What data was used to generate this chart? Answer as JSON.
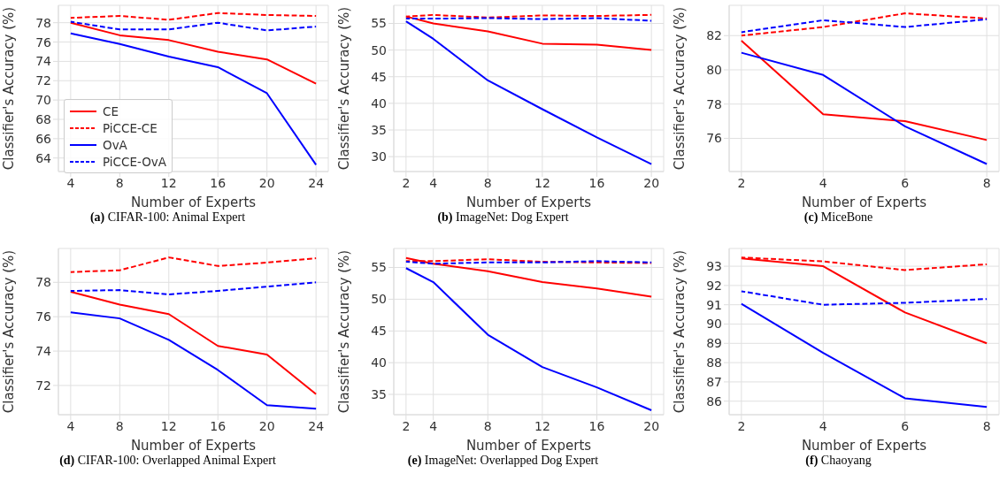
{
  "chart_data": [
    {
      "type": "line",
      "title": "(a) CIFAR-100: Animal Expert",
      "xlabel": "Number of Experts",
      "ylabel": "Classifier's Accuracy (%)",
      "x": [
        4,
        8,
        12,
        16,
        20,
        24
      ],
      "xlim": [
        3,
        25
      ],
      "xticks": [
        4,
        8,
        12,
        16,
        20,
        24
      ],
      "ylim": [
        62.6,
        79.8
      ],
      "yticks": [
        64,
        66,
        68,
        70,
        72,
        74,
        76,
        78
      ],
      "grid": true,
      "legend": "bottom left",
      "marker": "none",
      "series": [
        {
          "name": "CE",
          "color": "#ff0000",
          "line_style": "solid",
          "values": [
            78.0,
            76.7,
            76.2,
            75.0,
            74.2,
            71.7
          ]
        },
        {
          "name": "PiCCE-CE",
          "color": "#ff0000",
          "line_style": "dashed",
          "values": [
            78.5,
            78.7,
            78.3,
            79.0,
            78.8,
            78.7
          ]
        },
        {
          "name": "OvA",
          "color": "#0000ff",
          "line_style": "solid",
          "values": [
            76.9,
            75.8,
            74.5,
            73.4,
            70.7,
            63.3
          ]
        },
        {
          "name": "PiCCE-OvA",
          "color": "#0000ff",
          "line_style": "dashed",
          "values": [
            78.1,
            77.3,
            77.3,
            78.0,
            77.2,
            77.6
          ]
        }
      ]
    },
    {
      "type": "line",
      "title": "(b) ImageNet: Dog Expert",
      "xlabel": "Number of Experts",
      "ylabel": "Classifier's Accuracy (%)",
      "x": [
        2,
        4,
        8,
        12,
        16,
        20
      ],
      "xlim": [
        1.1,
        20.9
      ],
      "xticks": [
        2,
        4,
        8,
        12,
        16,
        20
      ],
      "ylim": [
        27.2,
        58.4
      ],
      "yticks": [
        30,
        35,
        40,
        45,
        50,
        55
      ],
      "grid": true,
      "legend": false,
      "marker": "none",
      "series": [
        {
          "color": "#ff0000",
          "line_style": "solid",
          "values": [
            56.3,
            55.0,
            53.5,
            51.2,
            51.0,
            50.0
          ]
        },
        {
          "color": "#ff0000",
          "line_style": "dashed",
          "values": [
            56.3,
            56.6,
            56.1,
            56.5,
            56.4,
            56.6
          ]
        },
        {
          "color": "#0000ff",
          "line_style": "solid",
          "values": [
            55.4,
            52.1,
            44.3,
            38.9,
            33.6,
            28.6
          ]
        },
        {
          "color": "#0000ff",
          "line_style": "dashed",
          "values": [
            55.9,
            55.9,
            56.0,
            55.8,
            56.0,
            55.5
          ]
        }
      ]
    },
    {
      "type": "line",
      "title": "(c) MiceBone",
      "xlabel": "Number of Experts",
      "ylabel": "Classifier's Accuracy (%)",
      "x": [
        2,
        4,
        6,
        8
      ],
      "xlim": [
        1.7,
        8.3
      ],
      "xticks": [
        2,
        4,
        6,
        8
      ],
      "ylim": [
        74.06,
        83.77
      ],
      "yticks": [
        76,
        78,
        80,
        82
      ],
      "grid": true,
      "legend": false,
      "marker": "none",
      "series": [
        {
          "color": "#ff0000",
          "line_style": "solid",
          "values": [
            81.7,
            77.4,
            77.0,
            75.9
          ]
        },
        {
          "color": "#ff0000",
          "line_style": "dashed",
          "values": [
            82.0,
            82.5,
            83.3,
            83.0
          ]
        },
        {
          "color": "#0000ff",
          "line_style": "solid",
          "values": [
            81.0,
            79.7,
            76.7,
            74.5
          ]
        },
        {
          "color": "#0000ff",
          "line_style": "dashed",
          "values": [
            82.2,
            82.9,
            82.5,
            82.95
          ]
        }
      ]
    },
    {
      "type": "line",
      "title": "(d) CIFAR-100: Overlapped Animal Expert",
      "xlabel": "Number of Experts",
      "ylabel": "Classifier's Accuracy (%)",
      "x": [
        4,
        8,
        12,
        16,
        20,
        24
      ],
      "xlim": [
        3,
        25
      ],
      "xticks": [
        4,
        8,
        12,
        16,
        20,
        24
      ],
      "ylim": [
        70.3,
        79.97
      ],
      "yticks": [
        72,
        74,
        76,
        78
      ],
      "grid": true,
      "legend": false,
      "marker": "none",
      "series": [
        {
          "color": "#ff0000",
          "line_style": "solid",
          "values": [
            77.45,
            76.7,
            76.15,
            74.3,
            73.8,
            71.5
          ]
        },
        {
          "color": "#ff0000",
          "line_style": "dashed",
          "values": [
            78.6,
            78.7,
            79.45,
            78.95,
            79.15,
            79.4
          ]
        },
        {
          "color": "#0000ff",
          "line_style": "solid",
          "values": [
            76.25,
            75.9,
            74.65,
            72.9,
            70.85,
            70.65
          ]
        },
        {
          "color": "#0000ff",
          "line_style": "dashed",
          "values": [
            77.5,
            77.55,
            77.3,
            77.5,
            77.75,
            78.0
          ]
        }
      ]
    },
    {
      "type": "line",
      "title": "(e) ImageNet: Overlapped Dog Expert",
      "xlabel": "Number of Experts",
      "ylabel": "Classifier's Accuracy (%)",
      "x": [
        2,
        4,
        8,
        12,
        16,
        20
      ],
      "xlim": [
        1.1,
        20.9
      ],
      "xticks": [
        2,
        4,
        8,
        12,
        16,
        20
      ],
      "ylim": [
        31.8,
        58.0
      ],
      "yticks": [
        35,
        40,
        45,
        50,
        55
      ],
      "grid": true,
      "legend": false,
      "marker": "none",
      "series": [
        {
          "color": "#ff0000",
          "line_style": "solid",
          "values": [
            56.5,
            55.6,
            54.4,
            52.7,
            51.7,
            50.4
          ]
        },
        {
          "color": "#ff0000",
          "line_style": "dashed",
          "values": [
            56.0,
            56.0,
            56.3,
            55.9,
            55.8,
            55.7
          ]
        },
        {
          "color": "#0000ff",
          "line_style": "solid",
          "values": [
            54.9,
            52.7,
            44.4,
            39.3,
            36.1,
            32.5
          ]
        },
        {
          "color": "#0000ff",
          "line_style": "dashed",
          "values": [
            55.9,
            55.6,
            55.8,
            55.8,
            56.0,
            55.8
          ]
        }
      ]
    },
    {
      "type": "line",
      "title": "(f) Chaoyang",
      "xlabel": "Number of Experts",
      "ylabel": "Classifier's Accuracy (%)",
      "x": [
        2,
        4,
        6,
        8
      ],
      "xlim": [
        1.7,
        8.3
      ],
      "xticks": [
        2,
        4,
        6,
        8
      ],
      "ylim": [
        85.3,
        93.92
      ],
      "yticks": [
        86,
        87,
        88,
        89,
        90,
        91,
        92,
        93
      ],
      "grid": true,
      "legend": false,
      "marker": "none",
      "series": [
        {
          "color": "#ff0000",
          "line_style": "solid",
          "values": [
            93.4,
            93.0,
            90.6,
            89.0
          ]
        },
        {
          "color": "#ff0000",
          "line_style": "dashed",
          "values": [
            93.45,
            93.25,
            92.8,
            93.1
          ]
        },
        {
          "color": "#0000ff",
          "line_style": "solid",
          "values": [
            91.05,
            88.5,
            86.15,
            85.7
          ]
        },
        {
          "color": "#0000ff",
          "line_style": "dashed",
          "values": [
            91.7,
            91.0,
            91.1,
            91.3
          ]
        }
      ]
    }
  ]
}
